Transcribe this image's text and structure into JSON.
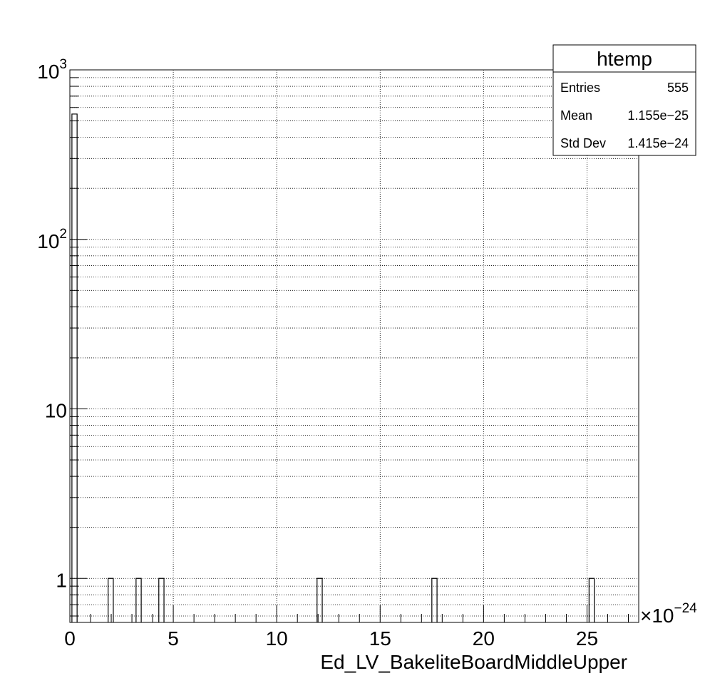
{
  "chart_data": {
    "type": "bar",
    "title": "",
    "xlabel": "Ed_LV_BakeliteBoardMiddleUpper",
    "ylabel": "",
    "x_multiplier": "×10",
    "x_multiplier_exponent": "−24",
    "x_scale": 1e-24,
    "xlim": [
      0,
      27.5
    ],
    "ylim": [
      0.55,
      1000
    ],
    "y_scale": "log",
    "grid": true,
    "x_ticks": [
      {
        "value": 0,
        "label": "0"
      },
      {
        "value": 5,
        "label": "5"
      },
      {
        "value": 10,
        "label": "10"
      },
      {
        "value": 15,
        "label": "15"
      },
      {
        "value": 20,
        "label": "20"
      },
      {
        "value": 25,
        "label": "25"
      }
    ],
    "y_ticks": [
      {
        "value": 1,
        "base": "1",
        "exp": ""
      },
      {
        "value": 10,
        "base": "10",
        "exp": ""
      },
      {
        "value": 100,
        "base": "10",
        "exp": "2"
      },
      {
        "value": 1000,
        "base": "10",
        "exp": "3"
      }
    ],
    "bars": [
      {
        "x": 0.1,
        "width": 0.25,
        "value": 549
      },
      {
        "x": 1.85,
        "width": 0.25,
        "value": 1
      },
      {
        "x": 3.2,
        "width": 0.25,
        "value": 1
      },
      {
        "x": 4.3,
        "width": 0.25,
        "value": 1
      },
      {
        "x": 11.95,
        "width": 0.25,
        "value": 1
      },
      {
        "x": 17.5,
        "width": 0.25,
        "value": 1
      },
      {
        "x": 25.1,
        "width": 0.25,
        "value": 1
      }
    ],
    "stats_box": {
      "title": "htemp",
      "rows": [
        {
          "label": "Entries",
          "value": "555"
        },
        {
          "label": "Mean",
          "value": "1.155e−25"
        },
        {
          "label": "Std Dev",
          "value": "1.415e−24"
        }
      ]
    },
    "legend_position": "top-right",
    "line_color": "#000000",
    "background": "#ffffff"
  }
}
